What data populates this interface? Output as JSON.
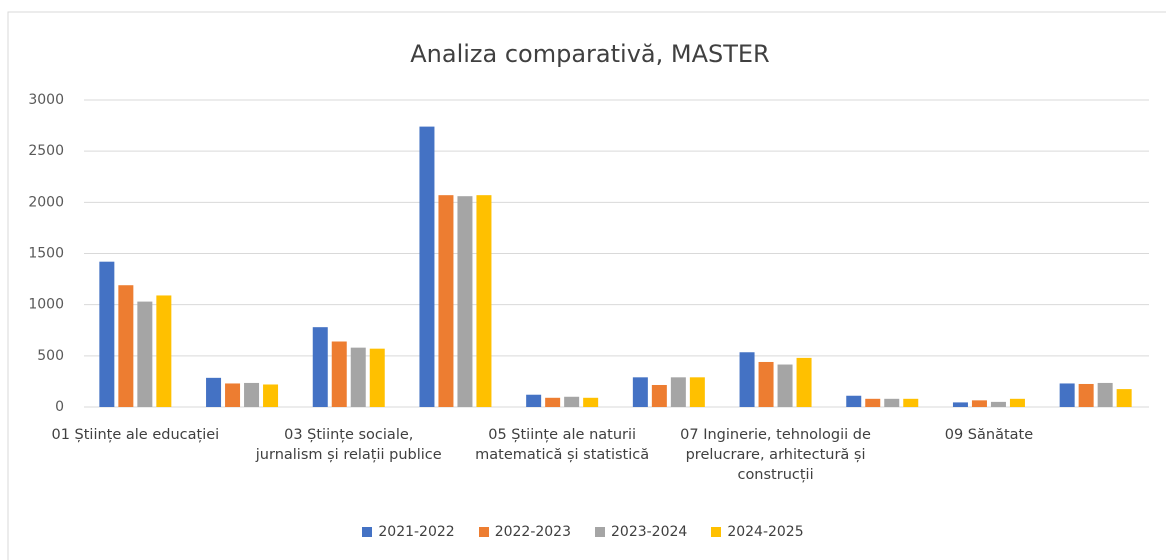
{
  "chart_data": {
    "type": "bar",
    "title": "Analiza comparativă, MASTER",
    "categories": [
      "01 Științe ale educației",
      null,
      "03 Științe sociale, jurnalism și relații publice",
      null,
      "05 Științe ale naturii matematică și statistică",
      null,
      "07 Inginerie, tehnologii de prelucrare, arhitectură și construcții",
      null,
      "09 Sănătate",
      null
    ],
    "series": [
      {
        "name": "2021-2022",
        "color": "#4472c4",
        "values": [
          1420,
          285,
          780,
          2740,
          120,
          290,
          535,
          110,
          45,
          230
        ]
      },
      {
        "name": "2022-2023",
        "color": "#ed7d31",
        "values": [
          1190,
          230,
          640,
          2070,
          90,
          215,
          440,
          80,
          65,
          225
        ]
      },
      {
        "name": "2023-2024",
        "color": "#a5a5a5",
        "values": [
          1030,
          235,
          580,
          2060,
          100,
          290,
          415,
          80,
          50,
          235
        ]
      },
      {
        "name": "2024-2025",
        "color": "#ffc000",
        "values": [
          1090,
          220,
          570,
          2070,
          90,
          290,
          480,
          80,
          80,
          175
        ]
      }
    ],
    "ylim": [
      0,
      3000
    ],
    "yticks": [
      0,
      500,
      1000,
      1500,
      2000,
      2500,
      3000
    ],
    "grid": true,
    "legend": "bottom"
  }
}
